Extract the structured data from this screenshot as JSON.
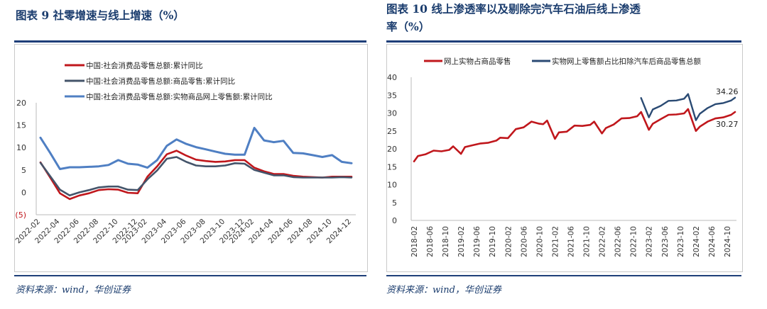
{
  "left": {
    "title": "图表 9   社零增速与线上增速（%）",
    "source": "资料来源：wind，华创证券",
    "chart_data": {
      "type": "line",
      "ylim": [
        -5,
        20
      ],
      "yticks": [
        "20",
        "15",
        "10",
        "5",
        "0",
        "(5)"
      ],
      "ytick_values": [
        20,
        15,
        10,
        5,
        0,
        -5
      ],
      "grid": false,
      "legend_position": "top",
      "x": [
        "2022-02",
        "2022-03",
        "2022-04",
        "2022-05",
        "2022-06",
        "2022-07",
        "2022-08",
        "2022-09",
        "2022-10",
        "2022-11",
        "2022-12",
        "2023-02",
        "2023-03",
        "2023-04",
        "2023-05",
        "2023-06",
        "2023-07",
        "2023-08",
        "2023-09",
        "2023-10",
        "2023-11",
        "2023-12",
        "2024-02",
        "2024-03",
        "2024-04",
        "2024-05",
        "2024-06",
        "2024-07",
        "2024-08",
        "2024-09",
        "2024-10",
        "2024-11",
        "2024-12"
      ],
      "xticks": [
        "2022-02",
        "2022-04",
        "2022-06",
        "2022-08",
        "2022-10",
        "2022-12",
        "2023-02",
        "2023-04",
        "2023-06",
        "2023-08",
        "2023-10",
        "2023-12",
        "2024-02",
        "2024-04",
        "2024-06",
        "2024-08",
        "2024-10",
        "2024-12"
      ],
      "series": [
        {
          "name": "中国:社会消费品零售总额:累计同比",
          "color": "#c0171c",
          "width": 2.6,
          "values": [
            6.7,
            3.3,
            -0.2,
            -1.5,
            -0.7,
            -0.2,
            0.5,
            0.7,
            0.6,
            -0.1,
            -0.2,
            3.5,
            5.8,
            8.5,
            9.3,
            8.2,
            7.3,
            7.0,
            6.8,
            6.9,
            7.2,
            7.2,
            5.5,
            4.7,
            4.1,
            4.1,
            3.7,
            3.5,
            3.4,
            3.3,
            3.5,
            3.5,
            3.5
          ]
        },
        {
          "name": "中国:社会消费品零售总额:商品零售:累计同比",
          "color": "#44546a",
          "width": 2.6,
          "values": [
            6.6,
            3.6,
            0.6,
            -0.7,
            0.0,
            0.5,
            1.1,
            1.3,
            1.3,
            0.6,
            0.5,
            2.9,
            4.9,
            7.5,
            7.9,
            6.8,
            6.0,
            5.8,
            5.8,
            6.0,
            6.5,
            6.4,
            5.0,
            4.4,
            3.8,
            3.8,
            3.4,
            3.3,
            3.3,
            3.3,
            3.3,
            3.4,
            3.3
          ]
        },
        {
          "name": "中国:社会消费品零售总额:实物商品网上零售额:累计同比",
          "color": "#4f7fc3",
          "width": 3,
          "values": [
            12.2,
            8.8,
            5.2,
            5.6,
            5.6,
            5.7,
            5.8,
            6.1,
            7.2,
            6.4,
            6.2,
            5.5,
            7.2,
            10.4,
            11.8,
            10.8,
            10.1,
            9.6,
            9.1,
            8.6,
            8.4,
            8.4,
            14.4,
            11.6,
            11.2,
            11.5,
            8.8,
            8.7,
            8.3,
            7.9,
            8.3,
            6.8,
            6.5
          ]
        }
      ]
    }
  },
  "right": {
    "title_line1": "图表 10    线上渗透率以及剔除完汽车石油后线上渗透",
    "title_line2": "率（%）",
    "source": "资料来源：wind，华创证券",
    "chart_data": {
      "type": "line",
      "ylim": [
        0,
        40
      ],
      "yticks": [
        "40",
        "35",
        "30",
        "25",
        "20",
        "15",
        "10",
        "5",
        "0"
      ],
      "ytick_values": [
        40,
        35,
        30,
        25,
        20,
        15,
        10,
        5,
        0
      ],
      "grid": false,
      "legend_position": "top",
      "xticks": [
        "2018-02",
        "2018-06",
        "2018-10",
        "2019-02",
        "2019-06",
        "2019-10",
        "2020-02",
        "2020-06",
        "2020-10",
        "2021-02",
        "2021-06",
        "2021-10",
        "2022-02",
        "2022-06",
        "2022-10",
        "2023-02",
        "2023-06",
        "2023-10",
        "2024-02",
        "2024-06",
        "2024-10"
      ],
      "annotations": [
        "34.26",
        "30.27"
      ],
      "series": [
        {
          "name": "网上实物占商品零售",
          "color": "#c0171c",
          "width": 2.6,
          "x": [
            "2018-02",
            "2018-03",
            "2018-05",
            "2018-07",
            "2018-09",
            "2018-11",
            "2018-12",
            "2019-02",
            "2019-03",
            "2019-05",
            "2019-07",
            "2019-09",
            "2019-11",
            "2019-12",
            "2020-02",
            "2020-04",
            "2020-06",
            "2020-08",
            "2020-10",
            "2020-11",
            "2020-12",
            "2021-02",
            "2021-03",
            "2021-05",
            "2021-07",
            "2021-09",
            "2021-11",
            "2021-12",
            "2022-02",
            "2022-03",
            "2022-05",
            "2022-07",
            "2022-09",
            "2022-11",
            "2022-12",
            "2023-02",
            "2023-03",
            "2023-05",
            "2023-07",
            "2023-09",
            "2023-11",
            "2023-12",
            "2024-02",
            "2024-03",
            "2024-05",
            "2024-07",
            "2024-09",
            "2024-11",
            "2024-12"
          ],
          "values": [
            16.5,
            18.0,
            18.5,
            19.5,
            19.3,
            19.7,
            20.7,
            18.6,
            20.5,
            21.0,
            21.5,
            21.7,
            22.3,
            23.1,
            23.0,
            25.5,
            26.0,
            27.6,
            27.0,
            26.9,
            27.9,
            22.8,
            24.6,
            24.8,
            26.5,
            26.4,
            26.7,
            27.6,
            24.3,
            25.8,
            26.8,
            28.5,
            28.6,
            29.1,
            30.3,
            25.3,
            27.0,
            28.3,
            29.5,
            29.6,
            29.9,
            31.1,
            25.0,
            26.2,
            27.6,
            28.5,
            28.8,
            29.5,
            30.3
          ]
        },
        {
          "name": "实物网上零售额占比扣除汽车后商品零售总额",
          "color": "#2a4a73",
          "width": 2.4,
          "x": [
            "2022-12",
            "2023-02",
            "2023-03",
            "2023-05",
            "2023-07",
            "2023-09",
            "2023-11",
            "2023-12",
            "2024-02",
            "2024-03",
            "2024-05",
            "2024-07",
            "2024-09",
            "2024-11",
            "2024-12"
          ],
          "values": [
            34.2,
            28.8,
            31.0,
            32.0,
            33.4,
            33.5,
            34.0,
            35.3,
            28.0,
            29.8,
            31.4,
            32.5,
            32.8,
            33.5,
            34.3
          ]
        }
      ]
    }
  }
}
